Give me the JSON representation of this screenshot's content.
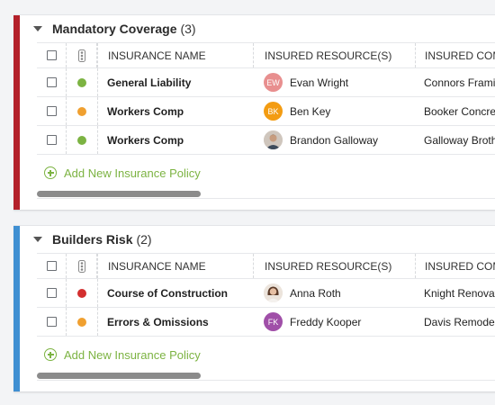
{
  "columns": {
    "name": "INSURANCE NAME",
    "resource": "INSURED RESOURCE(S)",
    "company": "INSURED COMPA"
  },
  "add_label": "Add New Insurance Policy",
  "colors": {
    "mandatory_bar": "#b3202a",
    "builders_bar": "#3f8fd2",
    "status_green": "#7cb342",
    "status_orange": "#f0a030",
    "status_red": "#d32f2f",
    "add_link": "#7cb342"
  },
  "sections": [
    {
      "title": "Mandatory Coverage",
      "count": "(3)",
      "rows": [
        {
          "status": "green",
          "name": "General Liability",
          "avatar": "EW",
          "avatar_color": "#e88f8f",
          "resource": "Evan Wright",
          "company": "Connors Framin"
        },
        {
          "status": "orange",
          "name": "Workers Comp",
          "avatar": "BK",
          "avatar_color": "#f39c12",
          "resource": "Ben Key",
          "company": "Booker Concret"
        },
        {
          "status": "green",
          "name": "Workers Comp",
          "avatar": "photo",
          "avatar_color": "#cdbba8",
          "resource": "Brandon Galloway",
          "company": "Galloway Broth"
        }
      ]
    },
    {
      "title": "Builders Risk",
      "count": "(2)",
      "rows": [
        {
          "status": "red",
          "name": "Course of Construction",
          "avatar": "photo",
          "avatar_color": "#d9c6b6",
          "resource": "Anna Roth",
          "company": "Knight Renovat"
        },
        {
          "status": "orange",
          "name": "Errors & Omissions",
          "avatar": "FK",
          "avatar_color": "#a04fa8",
          "resource": "Freddy Kooper",
          "company": "Davis Remodel"
        }
      ]
    }
  ]
}
